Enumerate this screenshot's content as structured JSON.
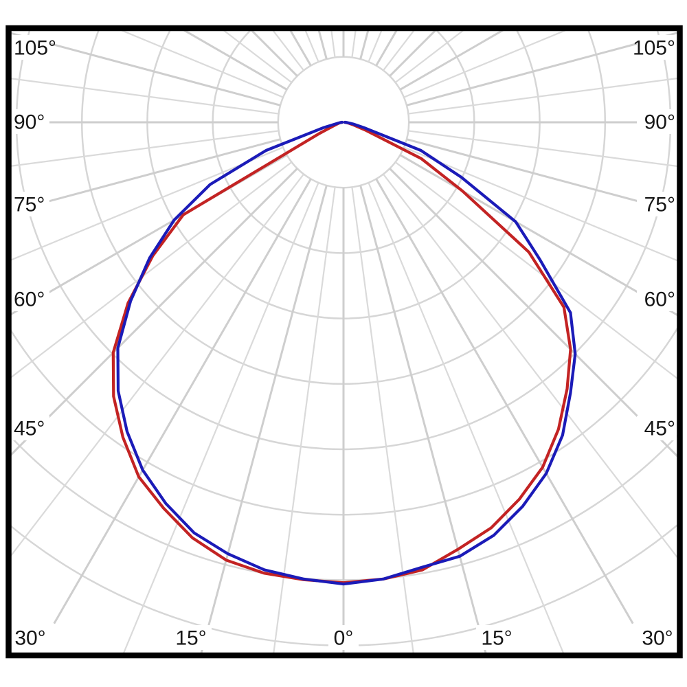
{
  "chart_data": {
    "type": "line",
    "subtype": "polar-photometric-intensity-distribution",
    "title": "",
    "legend": "none visible",
    "angle_axis": {
      "unit": "degrees",
      "zero_direction": "down (nadir)",
      "label_step_deg": 15,
      "grid_spoke_step_deg": 7.5,
      "left_labels": [
        "105°",
        "90°",
        "75°",
        "60°",
        "45°"
      ],
      "right_labels": [
        "105°",
        "90°",
        "75°",
        "60°",
        "45°"
      ],
      "bottom_labels": [
        "30°",
        "15°",
        "0°",
        "15°",
        "30°"
      ]
    },
    "radial_axis": {
      "rings": 8,
      "tick_labels_visible": false,
      "unit": "grid rings (no radial scale labels shown in image)"
    },
    "colors": {
      "grid": "#d6d6d6",
      "grid_major": "#cecece",
      "frame": "#000000",
      "label_text": "#161616",
      "series_red": "#c32323",
      "series_blue": "#1b1bb8"
    },
    "series": [
      {
        "id": "red-curve",
        "color_key": "series_red",
        "points_angle_deg_radius_rings": [
          [
            -90,
            0.02
          ],
          [
            -85,
            0.04
          ],
          [
            -80,
            0.07
          ],
          [
            -75,
            0.1
          ],
          [
            -70,
            0.16
          ],
          [
            -65,
            0.42
          ],
          [
            -60,
            2.83
          ],
          [
            -55,
            3.56
          ],
          [
            -50,
            4.3
          ],
          [
            -45,
            4.98
          ],
          [
            -40,
            5.47
          ],
          [
            -35,
            5.88
          ],
          [
            -30,
            6.26
          ],
          [
            -25,
            6.51
          ],
          [
            -20,
            6.76
          ],
          [
            -15,
            6.93
          ],
          [
            -10,
            7.0
          ],
          [
            -5,
            7.02
          ],
          [
            0,
            7.04
          ],
          [
            5,
            7.01
          ],
          [
            10,
            6.95
          ],
          [
            15,
            6.76
          ],
          [
            20,
            6.6
          ],
          [
            25,
            6.36
          ],
          [
            30,
            6.09
          ],
          [
            35,
            5.73
          ],
          [
            40,
            5.32
          ],
          [
            45,
            4.91
          ],
          [
            50,
            4.4
          ],
          [
            55,
            3.46
          ],
          [
            60,
            2.1
          ],
          [
            65,
            1.31
          ],
          [
            70,
            0.37
          ],
          [
            75,
            0.16
          ],
          [
            80,
            0.08
          ],
          [
            85,
            0.04
          ],
          [
            90,
            0.02
          ]
        ]
      },
      {
        "id": "blue-curve",
        "color_key": "series_blue",
        "points_angle_deg_radius_rings": [
          [
            -90,
            0.02
          ],
          [
            -85,
            0.05
          ],
          [
            -80,
            0.1
          ],
          [
            -75,
            0.31
          ],
          [
            -70,
            1.26
          ],
          [
            -65,
            2.25
          ],
          [
            -60,
            2.99
          ],
          [
            -55,
            3.62
          ],
          [
            -50,
            4.25
          ],
          [
            -45,
            4.88
          ],
          [
            -40,
            5.36
          ],
          [
            -35,
            5.77
          ],
          [
            -30,
            6.14
          ],
          [
            -25,
            6.43
          ],
          [
            -20,
            6.68
          ],
          [
            -15,
            6.83
          ],
          [
            -10,
            6.95
          ],
          [
            -5,
            7.01
          ],
          [
            0,
            7.06
          ],
          [
            5,
            7.01
          ],
          [
            10,
            6.91
          ],
          [
            15,
            6.87
          ],
          [
            20,
            6.72
          ],
          [
            25,
            6.48
          ],
          [
            30,
            6.2
          ],
          [
            35,
            5.84
          ],
          [
            40,
            5.4
          ],
          [
            45,
            5.01
          ],
          [
            50,
            4.53
          ],
          [
            55,
            3.67
          ],
          [
            60,
            3.04
          ],
          [
            65,
            1.99
          ],
          [
            70,
            1.26
          ],
          [
            75,
            0.34
          ],
          [
            80,
            0.15
          ],
          [
            85,
            0.06
          ],
          [
            90,
            0.02
          ]
        ]
      }
    ]
  }
}
